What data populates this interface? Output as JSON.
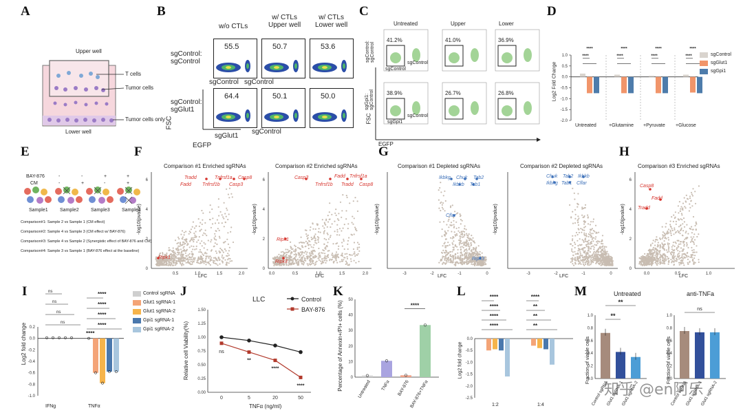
{
  "labels": {
    "A": "A",
    "B": "B",
    "C": "C",
    "D": "D",
    "E": "E",
    "F": "F",
    "G": "G",
    "H": "H",
    "I": "I",
    "J": "J",
    "K": "K",
    "L": "L",
    "M": "M"
  },
  "panelA": {
    "upper": "Upper well",
    "tcells": "T cells",
    "tumor": "Tumor cells",
    "tumor_only": "Tumor cells only",
    "lower": "Lower well"
  },
  "panelB": {
    "col1": "w/o CTLs",
    "col2": "w/ CTLs\nUpper well",
    "col3": "w/ CTLs\nLower well",
    "row1": "sgControl:\nsgControl",
    "row2": "sgControl:\nsgGlut1",
    "vals_row1": [
      "55.5",
      "50.7",
      "53.6"
    ],
    "vals_row2": [
      "64.4",
      "50.1",
      "50.0"
    ],
    "ann_sgcontrol_a": "sgControl",
    "ann_sgcontrol_b": "sgControl",
    "ann_sgglut1": "sgGlut1",
    "ann_sgcontrol_c": "sgControl",
    "fsc": "FSC",
    "egfp": "EGFP"
  },
  "panelC": {
    "col1": "Untreated",
    "col2": "Upper",
    "col3": "Lower",
    "row1": "sgControl:\nsgControl",
    "row2": "sgGpi1:\nsgControl",
    "vals_row1": [
      "41.2%",
      "41.0%",
      "36.9%"
    ],
    "vals_row2": [
      "38.9%",
      "26.7%",
      "26.8%"
    ],
    "in_label_row1": "sgControl",
    "in_label_row1b": "sgControl",
    "in_label_row2": "sgGpi1",
    "in_label_row2b": "sgControl",
    "fsc": "FSC",
    "egfp": "EGFP"
  },
  "panelD": {
    "ylabel": "Log2 Fold Change",
    "yticks": [
      "1.0",
      "0.5",
      "0.0",
      "-0.5",
      "-1.0",
      "-1.5",
      "-2.0"
    ],
    "groups": [
      "Untreated",
      "+Glutamine",
      "+Pyruvate",
      "+Glucose"
    ],
    "legend": [
      "sgControl",
      "sgGlut1",
      "sgGpi1"
    ],
    "sig": "****",
    "colors": {
      "control": "#d9d4ce",
      "glut1": "#f1956a",
      "gpi1": "#4e7cab"
    }
  },
  "panelE": {
    "bay": "BAY-876",
    "cm": "CM",
    "bay_signs": [
      "-",
      "-",
      "+",
      "+"
    ],
    "cm_signs": [
      "-",
      "+",
      "-",
      "+"
    ],
    "samples": [
      "Sample1",
      "Sample2",
      "Sample3",
      "Sample4"
    ],
    "comparisons": [
      "Comparison#1: Sample 2 vs Sample 1 (CM effect)",
      "Comparison#2: Sample 4 vs Sample 3 (CM effect w/ BAY-876)",
      "Comparison#3: Sample 4 vs Sample 2 (Synergistic effect of BAY-876 and CM)",
      "Comparison#4: Sample 3 vs Sample 1 (BAY-876 effect at the baseline)"
    ]
  },
  "panelF": {
    "title1": "Comparison #1 Enriched sgRNAs",
    "title2": "Comparison #2 Enriched sgRNAs",
    "ylabel": "-log10(pvalue)",
    "xlabel": "LFC",
    "genes1": [
      "Tradd",
      "Tnfrsf1a",
      "Casp8",
      "Fadd",
      "Tnfrsf1b",
      "Casp3",
      "Ripk1"
    ],
    "genes2": [
      "Casp3",
      "Fadd",
      "Tnfrsf1a",
      "Tnfrsf1b",
      "Tradd",
      "Casp8",
      "Ripk1",
      "Ripk3"
    ],
    "xticks1": [
      "0.5",
      "1.0",
      "1.5",
      "2.0"
    ],
    "xticks2": [
      "0.0",
      "0.5",
      "1.0",
      "1.5",
      "2.0"
    ],
    "yticks": [
      "0",
      "2",
      "4",
      "6"
    ]
  },
  "panelG": {
    "title1": "Comparison #1 Depleted sgRNAs",
    "title2": "Comparison #2 Depleted sgRNAs",
    "ylabel": "-log10(pvalue)",
    "xlabel": "LFC",
    "genes1": [
      "Ikbkg",
      "Chuk",
      "Tab2",
      "Ikbkb",
      "Tab1",
      "Cflar",
      "Ripk3"
    ],
    "genes2": [
      "Chuk",
      "Tab2",
      "Ikbkb",
      "Ikbkg",
      "Tab1",
      "Cflar"
    ],
    "xticks": [
      "-3",
      "-2",
      "-1",
      "0"
    ]
  },
  "panelH": {
    "title": "Comparison #3 Enriched sgRNAs",
    "ylabel": "-log10(pvalue)",
    "xlabel": "LFC",
    "genes": [
      "Casp8",
      "Fadd",
      "Tradd"
    ],
    "xticks": [
      "0.0",
      "0.5",
      "1.0"
    ],
    "yticks": [
      "0",
      "2",
      "4",
      "6"
    ]
  },
  "panelI": {
    "ylabel": "Log2 fold change",
    "yticks": [
      "0.2",
      "0.0",
      "-0.2",
      "-0.4",
      "-0.6",
      "-0.8",
      "-1.0"
    ],
    "groups": [
      "IFNg",
      "TNFα"
    ],
    "legend": [
      "Control sgRNA",
      "Glut1 sgRNA-1",
      "Glut1 sgRNA-2",
      "Gpi1 sgRNA-1",
      "Gpi1 sgRNA-2"
    ],
    "ns": "ns",
    "sig": "****",
    "colors": [
      "#cfcfcf",
      "#f4a477",
      "#f6b44b",
      "#4a78ad",
      "#a8c6de"
    ]
  },
  "panelJ": {
    "title": "LLC",
    "ylabel": "Relative cell Viability(%)",
    "xlabel": "TNFα (ng/ml)",
    "xticks": [
      "0",
      "5",
      "20",
      "50"
    ],
    "yticks": [
      "0.00",
      "0.25",
      "0.50",
      "0.75",
      "1.00",
      "1.25",
      "1.50"
    ],
    "legend": [
      "Control",
      "BAY-876"
    ],
    "chart_data": {
      "type": "line",
      "x": [
        0,
        5,
        20,
        50
      ],
      "series": [
        {
          "name": "Control",
          "values": [
            1.0,
            0.94,
            0.85,
            0.73
          ]
        },
        {
          "name": "BAY-876",
          "values": [
            0.89,
            0.73,
            0.58,
            0.27
          ]
        }
      ],
      "annotations": [
        "ns",
        "**",
        "****",
        "****"
      ]
    }
  },
  "panelK": {
    "ylabel": "Percentage of Annexin+/PI+ cells (%)",
    "yticks": [
      "0",
      "10",
      "20",
      "30",
      "40",
      "50"
    ],
    "categories": [
      "Untreated",
      "TNFα",
      "BAY-876",
      "BAY-876+TNFα"
    ],
    "values": [
      1,
      10.5,
      1.2,
      33.5
    ],
    "sig": "****",
    "colors": [
      "#cfcfcf",
      "#a9a4e0",
      "#f0a38a",
      "#9fd0a7"
    ]
  },
  "panelL": {
    "ylabel": "Log2 fold change",
    "yticks": [
      "0.0",
      "-0.5",
      "-1.0",
      "-1.5",
      "-2.0",
      "-2.5"
    ],
    "groups": [
      "1:2",
      "1:4"
    ],
    "sig4": "****",
    "sig2": "**"
  },
  "panelM": {
    "title1": "Untreated",
    "title2": "anti-TNFa",
    "ylabel": "Fraction of viable cells",
    "yticks": [
      "0.0",
      "0.2",
      "0.4",
      "0.6",
      "0.8",
      "1.0"
    ],
    "cats": [
      "Control sgRNA",
      "Glut1 sgRNA-1",
      "Glut1 sgRNA-2"
    ],
    "values1": [
      0.72,
      0.42,
      0.34
    ],
    "values2": [
      0.75,
      0.73,
      0.73
    ],
    "sig": "**",
    "ns": "ns",
    "colors": [
      "#a68b7c",
      "#32509b",
      "#4c9dd6"
    ]
  },
  "watermark": "知乎 @en阿乐"
}
